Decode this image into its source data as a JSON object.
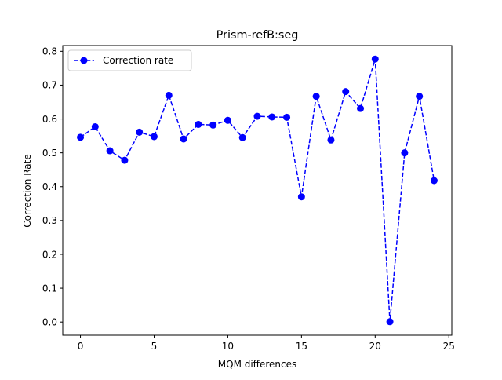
{
  "chart_data": {
    "type": "line",
    "title": "Prism-refB:seg",
    "xlabel": "MQM differences",
    "ylabel": "Correction Rate",
    "xlim": [
      -1.2,
      25.2
    ],
    "ylim": [
      -0.039,
      0.817
    ],
    "xticks": [
      0,
      5,
      10,
      15,
      20,
      25
    ],
    "yticks": [
      0.0,
      0.1,
      0.2,
      0.3,
      0.4,
      0.5,
      0.6,
      0.7,
      0.8
    ],
    "xtick_labels": [
      "0",
      "5",
      "10",
      "15",
      "20",
      "25"
    ],
    "ytick_labels": [
      "0.0",
      "0.1",
      "0.2",
      "0.3",
      "0.4",
      "0.5",
      "0.6",
      "0.7",
      "0.8"
    ],
    "grid": false,
    "legend_position": "upper-left",
    "series": [
      {
        "name": "Correction rate",
        "color": "#0000ff",
        "line_style": "dashed",
        "marker": "circle",
        "x": [
          0,
          1,
          2,
          3,
          4,
          5,
          6,
          7,
          8,
          9,
          10,
          11,
          12,
          13,
          14,
          15,
          16,
          17,
          18,
          19,
          20,
          21,
          22,
          23,
          24
        ],
        "y": [
          0.546,
          0.577,
          0.506,
          0.478,
          0.561,
          0.548,
          0.67,
          0.541,
          0.584,
          0.582,
          0.596,
          0.545,
          0.608,
          0.606,
          0.605,
          0.37,
          0.667,
          0.538,
          0.681,
          0.631,
          0.777,
          0.001,
          0.5,
          0.667,
          0.418
        ]
      }
    ]
  }
}
